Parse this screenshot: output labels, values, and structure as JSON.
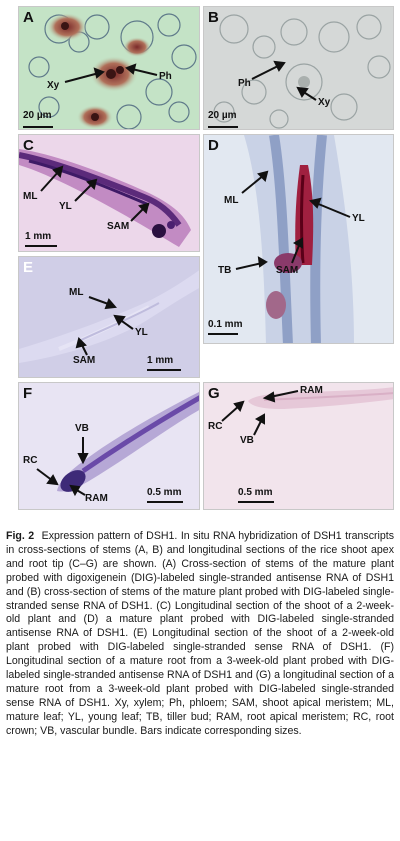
{
  "panels": {
    "A": {
      "label": "A",
      "labels": [
        "Xy",
        "Ph"
      ],
      "scale": "20 µm"
    },
    "B": {
      "label": "B",
      "labels": [
        "Ph",
        "Xy"
      ],
      "scale": "20 µm"
    },
    "C": {
      "label": "C",
      "labels": [
        "ML",
        "YL",
        "SAM"
      ],
      "scale": "1 mm"
    },
    "D": {
      "label": "D",
      "labels": [
        "ML",
        "YL",
        "TB",
        "SAM"
      ],
      "scale": "0.1 mm"
    },
    "E": {
      "label": "E",
      "labels": [
        "ML",
        "YL",
        "SAM"
      ],
      "scale": "1 mm"
    },
    "F": {
      "label": "F",
      "labels": [
        "VB",
        "RC",
        "RAM"
      ],
      "scale": "0.5 mm"
    },
    "G": {
      "label": "G",
      "labels": [
        "RAM",
        "RC",
        "VB"
      ],
      "scale": "0.5 mm"
    }
  },
  "caption": {
    "fig": "Fig. 2",
    "text": "Expression pattern of DSH1. In situ RNA hybridization of DSH1 transcripts in cross-sections of stems (A, B) and longitudinal sections of the rice shoot apex and root tip (C–G) are shown. (A) Cross-section of stems of the mature plant probed with digoxigenein (DIG)-labeled single-stranded antisense RNA of DSH1 and (B) cross-section of stems of the mature plant probed with DIG-labeled single-stranded sense RNA of DSH1. (C) Longitudinal section of the shoot of a 2-week-old plant and (D) a mature plant probed with DIG-labeled single-stranded antisense RNA of DSH1. (E) Longitudinal section of the shoot of a 2-week-old plant probed with DIG-labeled single-stranded sense RNA of DSH1. (F) Longitudinal section of a mature root from a 3-week-old plant probed with DIG-labeled single-stranded antisense RNA of DSH1 and (G) a longitudinal section of a mature root from a 3-week-old plant probed with DIG-labeled single-stranded sense RNA of DSH1. Xy, xylem; Ph, phloem; SAM, shoot apical meristem; ML, mature leaf; YL, young leaf; TB, tiller bud; RAM, root apical meristem; RC, root crown; VB, vascular bundle. Bars indicate corresponding sizes."
  }
}
